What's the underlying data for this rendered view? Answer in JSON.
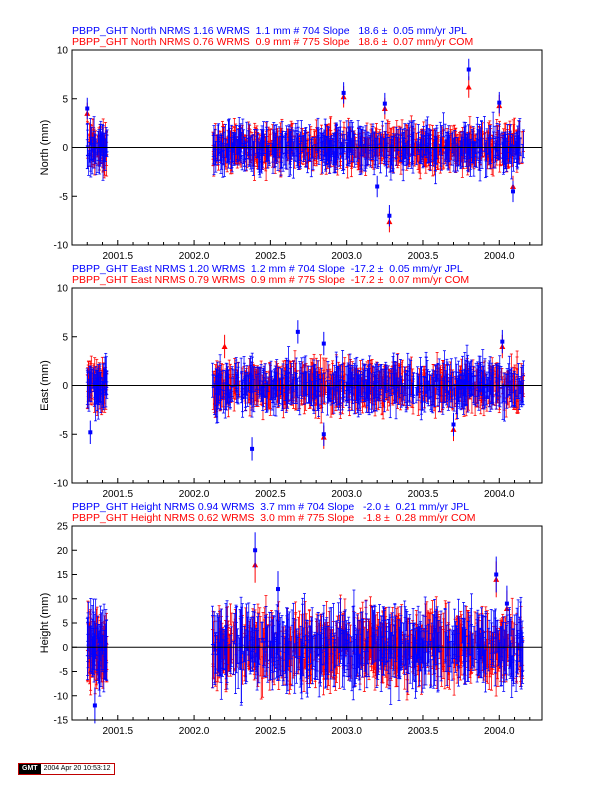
{
  "chart_data": [
    {
      "type": "scatter",
      "ylabel": "North (mm)",
      "xlim": [
        2001.2,
        2004.28
      ],
      "ylim": [
        -10,
        10
      ],
      "xticks": [
        2001.5,
        2002.0,
        2002.5,
        2003.0,
        2003.5,
        2004.0
      ],
      "xtick_labels": [
        "2001.5",
        "2002.0",
        "2002.5",
        "2003.0",
        "2003.5",
        "2004.0"
      ],
      "yticks": [
        -10,
        -5,
        0,
        5,
        10
      ],
      "ytick_labels": [
        "-10",
        "-5",
        "0",
        "5",
        "10"
      ],
      "series": [
        {
          "name": "PBPP_GHT North NRMS 1.16 WRMS  1.1 mm # 704 Slope   18.6 ±  0.05 mm/yr JPL",
          "color": "#0000ff",
          "marker": "square",
          "count": 704,
          "outliers": [
            [
              2001.3,
              4.0
            ],
            [
              2002.98,
              5.6
            ],
            [
              2003.2,
              -4.0
            ],
            [
              2003.25,
              4.5
            ],
            [
              2003.28,
              -7.0
            ],
            [
              2003.8,
              8.0
            ],
            [
              2004.0,
              4.6
            ],
            [
              2004.09,
              -4.5
            ]
          ]
        },
        {
          "name": "PBPP_GHT North NRMS 0.76 WRMS  0.9 mm # 775 Slope   18.6 ±  0.07 mm/yr COM",
          "color": "#ff0000",
          "marker": "triangle",
          "count": 775,
          "outliers": [
            [
              2001.3,
              3.5
            ],
            [
              2002.98,
              5.2
            ],
            [
              2003.25,
              4.0
            ],
            [
              2003.28,
              -7.6
            ],
            [
              2003.8,
              6.2
            ],
            [
              2004.0,
              4.3
            ],
            [
              2004.09,
              -4.0
            ]
          ]
        }
      ]
    },
    {
      "type": "scatter",
      "ylabel": "East (mm)",
      "xlim": [
        2001.2,
        2004.28
      ],
      "ylim": [
        -10,
        10
      ],
      "xticks": [
        2001.5,
        2002.0,
        2002.5,
        2003.0,
        2003.5,
        2004.0
      ],
      "xtick_labels": [
        "2001.5",
        "2002.0",
        "2002.5",
        "2003.0",
        "2003.5",
        "2004.0"
      ],
      "yticks": [
        -10,
        -5,
        0,
        5,
        10
      ],
      "ytick_labels": [
        "-10",
        "-5",
        "0",
        "5",
        "10"
      ],
      "series": [
        {
          "name": "PBPP_GHT East NRMS 1.20 WRMS  1.2 mm # 704 Slope  -17.2 ±  0.05 mm/yr JPL",
          "color": "#0000ff",
          "marker": "square",
          "count": 704,
          "outliers": [
            [
              2001.32,
              -4.8
            ],
            [
              2002.38,
              -6.5
            ],
            [
              2002.68,
              5.5
            ],
            [
              2002.85,
              4.3
            ],
            [
              2002.85,
              -5.0
            ],
            [
              2003.7,
              -4.0
            ],
            [
              2004.02,
              4.5
            ]
          ]
        },
        {
          "name": "PBPP_GHT East NRMS 0.79 WRMS  0.9 mm # 775 Slope  -17.2 ±  0.07 mm/yr COM",
          "color": "#ff0000",
          "marker": "triangle",
          "count": 775,
          "outliers": [
            [
              2002.2,
              4.0
            ],
            [
              2002.85,
              -5.3
            ],
            [
              2003.7,
              -4.5
            ],
            [
              2004.02,
              4.0
            ]
          ]
        }
      ]
    },
    {
      "type": "scatter",
      "ylabel": "Height (mm)",
      "xlim": [
        2001.2,
        2004.28
      ],
      "ylim": [
        -15,
        25
      ],
      "xticks": [
        2001.5,
        2002.0,
        2002.5,
        2003.0,
        2003.5,
        2004.0
      ],
      "xtick_labels": [
        "2001.5",
        "2002.0",
        "2002.5",
        "2003.0",
        "2003.5",
        "2004.0"
      ],
      "yticks": [
        -15,
        -10,
        -5,
        0,
        5,
        10,
        15,
        20,
        25
      ],
      "ytick_labels": [
        "-15",
        "-10",
        "-5",
        "0",
        "5",
        "10",
        "15",
        "20",
        "25"
      ],
      "series": [
        {
          "name": "PBPP_GHT Height NRMS 0.94 WRMS  3.7 mm # 704 Slope   -2.0 ±  0.21 mm/yr JPL",
          "color": "#0000ff",
          "marker": "square",
          "count": 704,
          "outliers": [
            [
              2002.4,
              20.0
            ],
            [
              2002.55,
              12.0
            ],
            [
              2003.98,
              15.0
            ],
            [
              2004.05,
              9.0
            ],
            [
              2001.35,
              -12.0
            ]
          ]
        },
        {
          "name": "PBPP_GHT Height NRMS 0.62 WRMS  3.0 mm # 775 Slope   -1.8 ±  0.28 mm/yr COM",
          "color": "#ff0000",
          "marker": "triangle",
          "count": 775,
          "outliers": [
            [
              2002.4,
              17.0
            ],
            [
              2003.98,
              14.0
            ],
            [
              2004.05,
              8.0
            ]
          ]
        }
      ]
    }
  ],
  "footer": {
    "logo_text": "GMT",
    "timestamp": "2004 Apr 20 10:53:12"
  }
}
